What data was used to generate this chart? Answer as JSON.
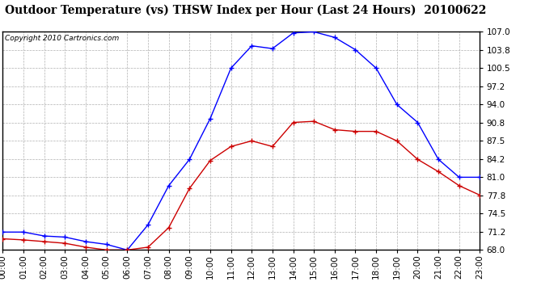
{
  "title": "Outdoor Temperature (vs) THSW Index per Hour (Last 24 Hours)  20100622",
  "copyright": "Copyright 2010 Cartronics.com",
  "hours": [
    "00:00",
    "01:00",
    "02:00",
    "03:00",
    "04:00",
    "05:00",
    "06:00",
    "07:00",
    "08:00",
    "09:00",
    "10:00",
    "11:00",
    "12:00",
    "13:00",
    "14:00",
    "15:00",
    "16:00",
    "17:00",
    "18:00",
    "19:00",
    "20:00",
    "21:00",
    "22:00",
    "23:00"
  ],
  "temp": [
    71.2,
    71.2,
    70.5,
    70.3,
    69.5,
    69.0,
    68.0,
    72.5,
    79.5,
    84.2,
    91.5,
    100.5,
    104.5,
    104.0,
    106.8,
    107.0,
    106.0,
    103.8,
    100.5,
    94.0,
    90.8,
    84.2,
    81.0,
    81.0
  ],
  "thsw": [
    70.0,
    69.8,
    69.5,
    69.2,
    68.5,
    68.0,
    68.0,
    68.5,
    72.0,
    79.0,
    84.0,
    86.5,
    87.5,
    86.5,
    90.8,
    91.0,
    89.5,
    89.2,
    89.2,
    87.5,
    84.2,
    82.0,
    79.5,
    77.8
  ],
  "ymin": 68.0,
  "ymax": 107.0,
  "yticks": [
    68.0,
    71.2,
    74.5,
    77.8,
    81.0,
    84.2,
    87.5,
    90.8,
    94.0,
    97.2,
    100.5,
    103.8,
    107.0
  ],
  "blue_color": "#0000FF",
  "red_color": "#CC0000",
  "bg_color": "#FFFFFF",
  "plot_bg": "#FFFFFF",
  "grid_color": "#B0B0B0",
  "title_fontsize": 10,
  "copyright_fontsize": 6.5,
  "tick_fontsize": 7.5
}
